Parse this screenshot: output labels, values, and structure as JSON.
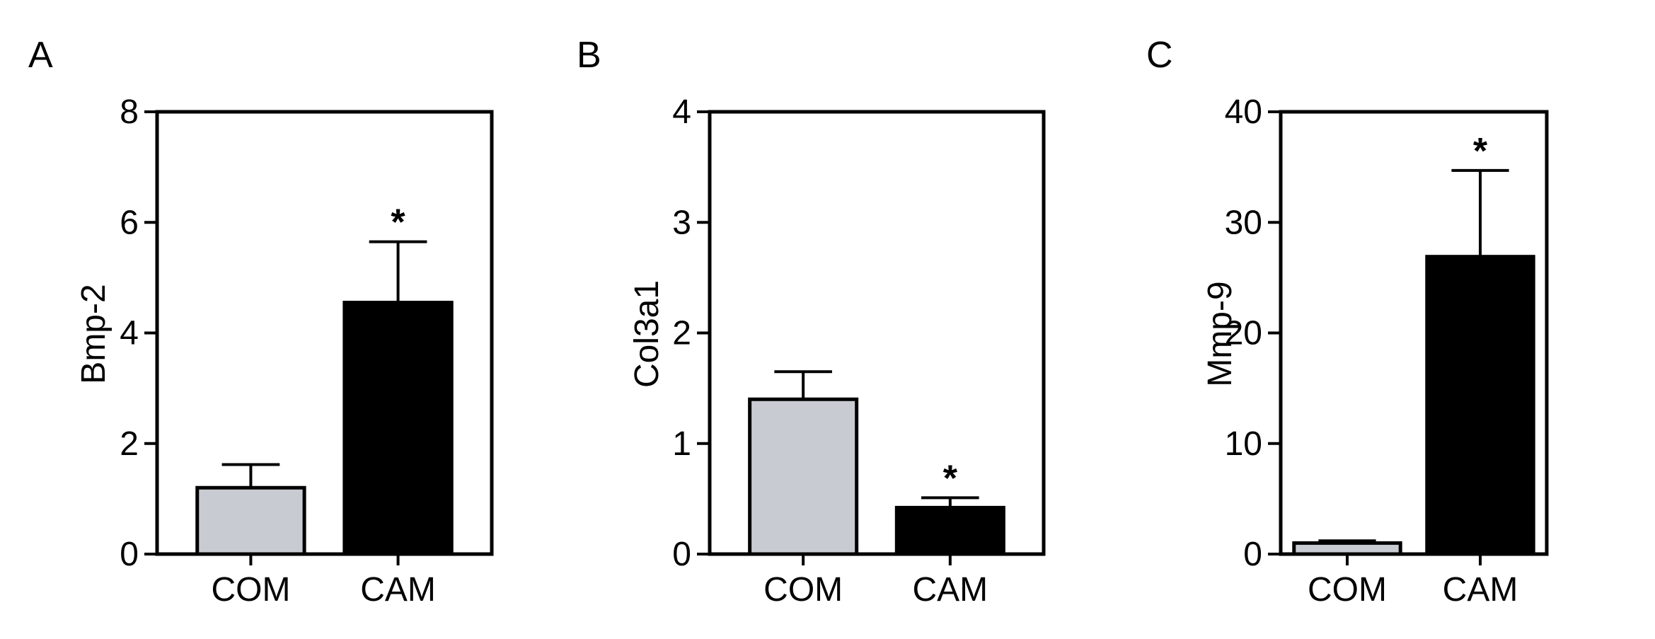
{
  "chart_data": [
    {
      "type": "bar",
      "panel": "A",
      "ylabel": "Bmp-2",
      "categories": [
        "COM",
        "CAM"
      ],
      "values": [
        1.2,
        4.55
      ],
      "errors": [
        0.42,
        1.1
      ],
      "significance": [
        "",
        "*"
      ],
      "ylim": [
        0,
        8
      ],
      "yticks": [
        0,
        2,
        4,
        6,
        8
      ],
      "bar_colors": [
        "#c8ccd2",
        "#000000"
      ]
    },
    {
      "type": "bar",
      "panel": "B",
      "ylabel": "Col3a1",
      "categories": [
        "COM",
        "CAM"
      ],
      "values": [
        1.4,
        0.42
      ],
      "errors": [
        0.25,
        0.09
      ],
      "significance": [
        "",
        "*"
      ],
      "ylim": [
        0,
        4
      ],
      "yticks": [
        0,
        1,
        2,
        3,
        4
      ],
      "bar_colors": [
        "#c8ccd2",
        "#000000"
      ]
    },
    {
      "type": "bar",
      "panel": "C",
      "ylabel": "Mmp-9",
      "categories": [
        "COM",
        "CAM"
      ],
      "values": [
        1.0,
        26.9
      ],
      "errors": [
        0.2,
        7.8
      ],
      "significance": [
        "",
        "*"
      ],
      "ylim": [
        0,
        40
      ],
      "yticks": [
        0,
        10,
        20,
        30,
        40
      ],
      "bar_colors": [
        "#c8ccd2",
        "#000000"
      ]
    }
  ]
}
